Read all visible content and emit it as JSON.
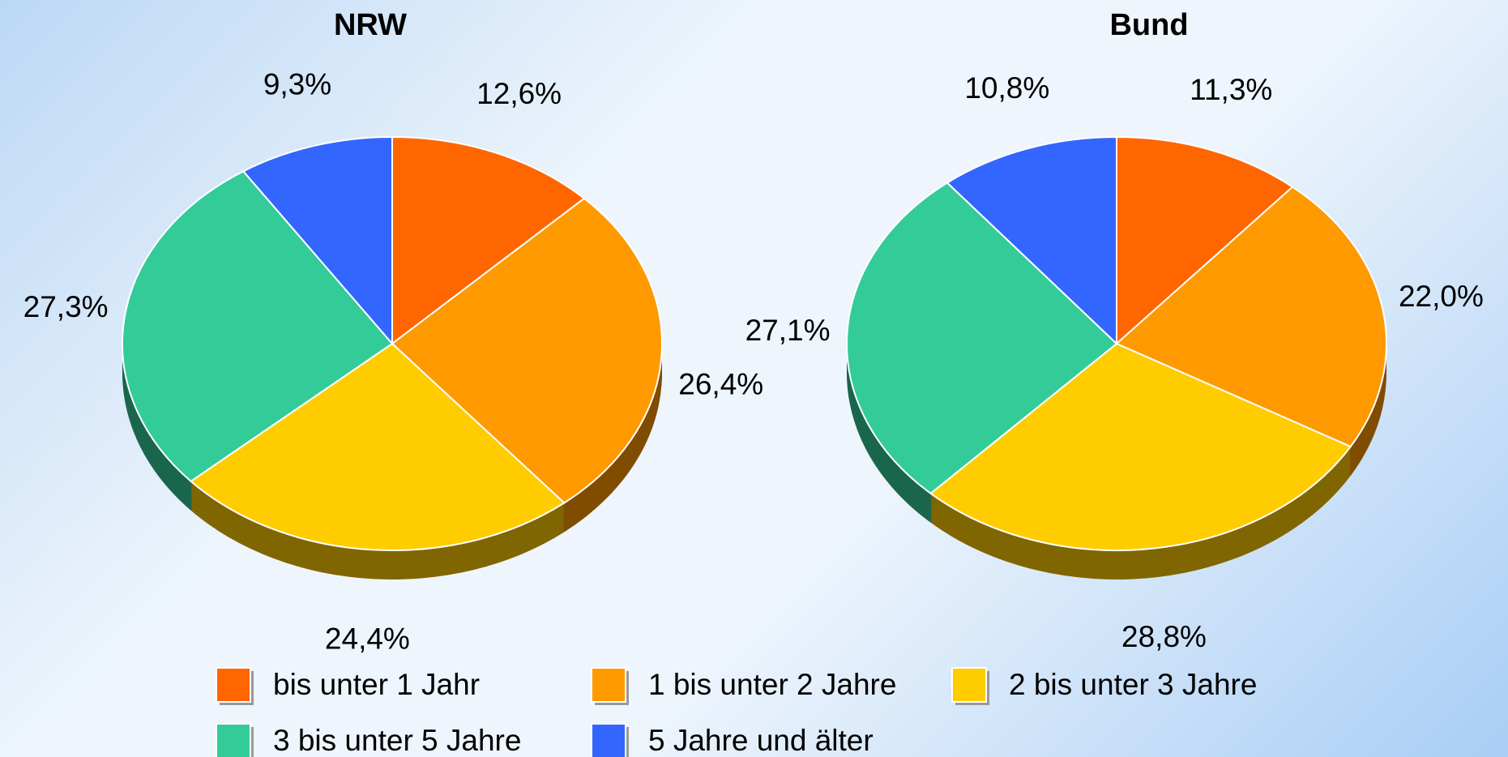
{
  "chart_data": [
    {
      "type": "pie",
      "title": "NRW",
      "categories": [
        "bis unter 1 Jahr",
        "1 bis unter 2 Jahre",
        "2 bis unter 3 Jahre",
        "3 bis unter 5 Jahre",
        "5 Jahre und älter"
      ],
      "colors": [
        "#ff6600",
        "#ff9900",
        "#ffcc00",
        "#33cc99",
        "#3366ff"
      ],
      "values": [
        12.6,
        26.4,
        24.4,
        27.3,
        9.3
      ],
      "value_labels": [
        "12,6%",
        "26,4%",
        "24,4%",
        "27,3%",
        "9,3%"
      ]
    },
    {
      "type": "pie",
      "title": "Bund",
      "values": [
        11.3,
        22.0,
        28.8,
        27.1,
        10.8
      ],
      "value_labels": [
        "11,3%",
        "22,0%",
        "28,8%",
        "27,1%",
        "10,8%"
      ]
    }
  ]
}
